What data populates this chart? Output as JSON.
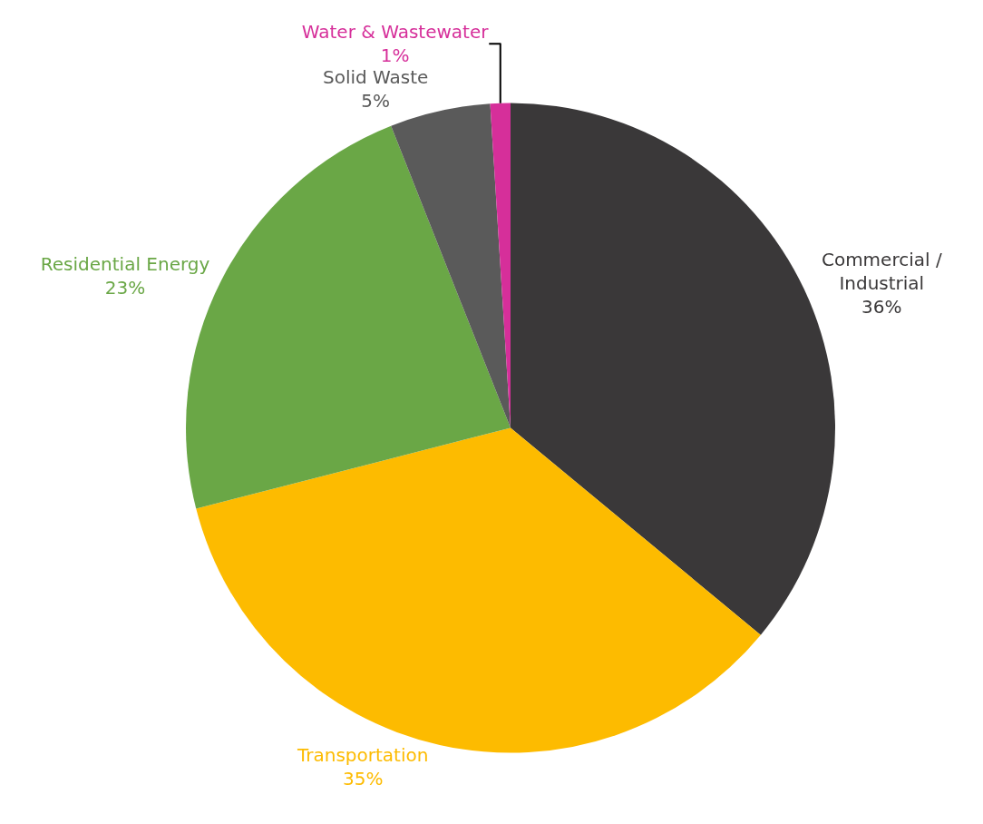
{
  "chart_data": {
    "type": "pie",
    "categories": [
      "Commercial /\nIndustrial",
      "Transportation",
      "Residential Energy",
      "Solid Waste",
      "Water & Wastewater"
    ],
    "values": [
      36,
      35,
      23,
      5,
      1
    ],
    "value_labels": [
      "36%",
      "35%",
      "23%",
      "5%",
      "1%"
    ],
    "colors": [
      "#3a3839",
      "#fdbb00",
      "#6aa746",
      "#5a5a5a",
      "#d62f9a"
    ],
    "legend": false
  }
}
